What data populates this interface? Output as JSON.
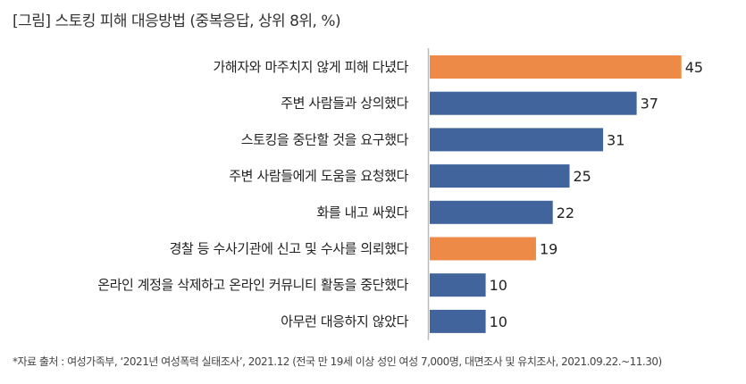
{
  "chart_data": {
    "type": "bar",
    "orientation": "horizontal",
    "title": "[그림] 스토킹 피해 대응방법 (중복응답, 상위 8위, %)",
    "categories": [
      "가해자와 마주치지 않게 피해 다녔다",
      "주변 사람들과 상의했다",
      "스토킹을 중단할 것을 요구했다",
      "주변 사람들에게 도움을 요청했다",
      "화를 내고 싸웠다",
      "경찰 등 수사기관에 신고 및 수사를 의뢰했다",
      "온라인 계정을 삭제하고 온라인 커뮤니티 활동을 중단했다",
      "아무런 대응하지 않았다"
    ],
    "values": [
      45,
      37,
      31,
      25,
      22,
      19,
      10,
      10
    ],
    "highlight": [
      true,
      false,
      false,
      false,
      false,
      true,
      false,
      false
    ],
    "xlim": [
      0,
      50
    ],
    "grid": false,
    "colors": {
      "highlight": "#EE8A48",
      "default": "#41649D",
      "axis": "#BBBBBB"
    }
  },
  "footnote": "*자료 출처 : 여성가족부, ‘2021년 여성폭력 실태조사’, 2021.12 (전국 만 19세 이상 성인 여성 7,000명, 대면조사 및 유치조사, 2021.09.22.~11.30)"
}
